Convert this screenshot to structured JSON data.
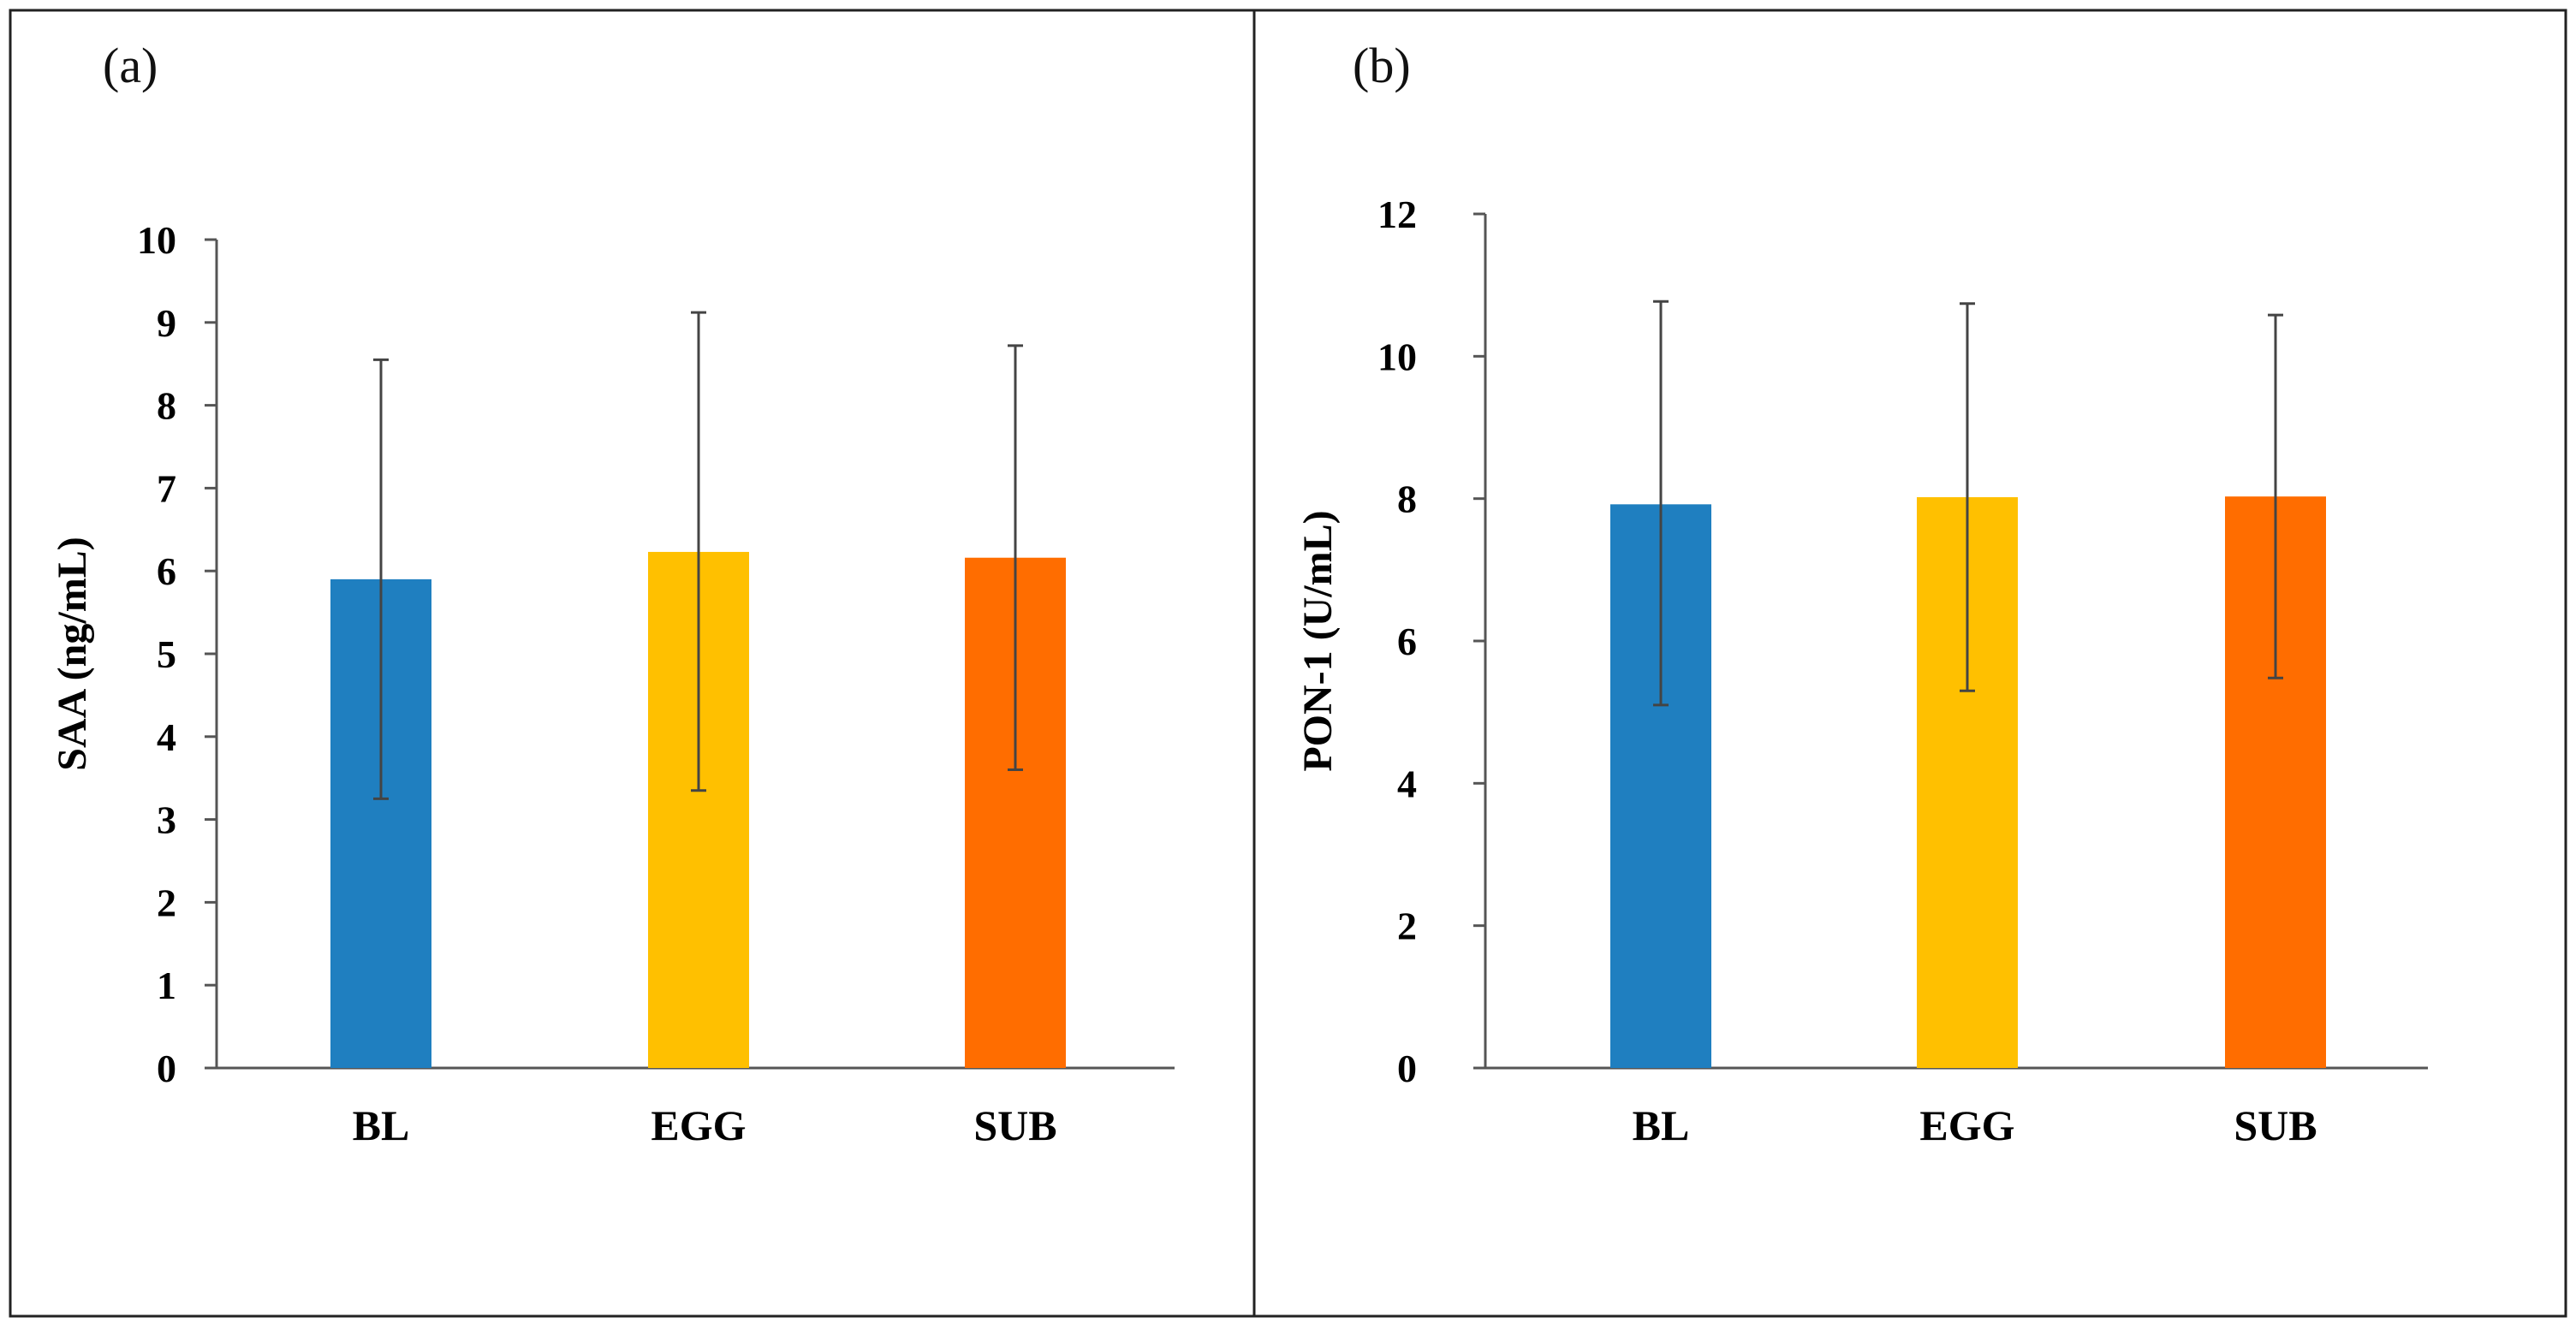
{
  "chart_data": [
    {
      "panel": "(a)",
      "type": "bar",
      "categories": [
        "BL",
        "EGG",
        "SUB"
      ],
      "values": [
        5.9,
        6.23,
        6.16
      ],
      "error_low": [
        3.25,
        3.35,
        3.6
      ],
      "error_high": [
        8.55,
        9.12,
        8.72
      ],
      "colors": [
        "#1f7fc0",
        "#ffc000",
        "#ff6d00"
      ],
      "ylabel": "SAA (ng/mL)",
      "xlabel": "",
      "ylim": [
        0,
        10
      ],
      "yticks": [
        0,
        1,
        2,
        3,
        4,
        5,
        6,
        7,
        8,
        9,
        10
      ],
      "grid": false
    },
    {
      "panel": "(b)",
      "type": "bar",
      "categories": [
        "BL",
        "EGG",
        "SUB"
      ],
      "values": [
        7.92,
        8.02,
        8.03
      ],
      "error_low": [
        5.1,
        5.3,
        5.48
      ],
      "error_high": [
        10.77,
        10.74,
        10.58
      ],
      "colors": [
        "#1f7fc0",
        "#ffc000",
        "#ff6d00"
      ],
      "ylabel": "PON-1 (U/mL)",
      "xlabel": "",
      "ylim": [
        0,
        12
      ],
      "yticks": [
        0,
        2,
        4,
        6,
        8,
        10,
        12
      ],
      "grid": false
    }
  ]
}
